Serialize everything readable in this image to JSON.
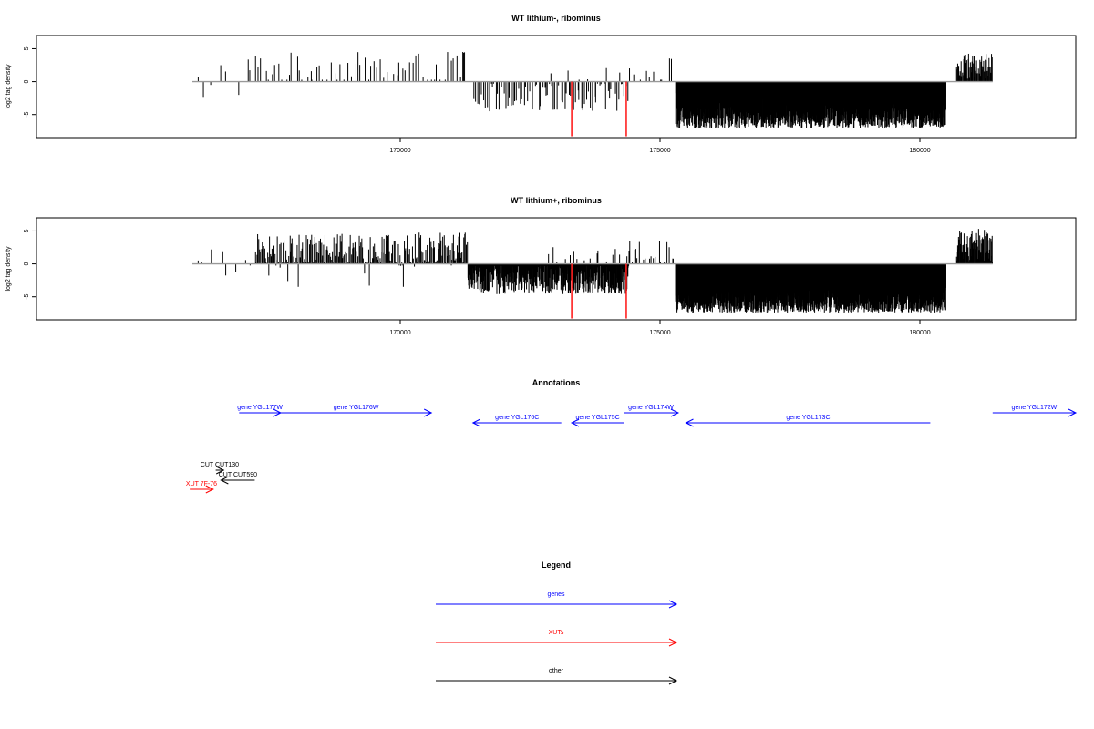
{
  "chart_data": [
    {
      "type": "bar",
      "title": "WT lithium-, ribominus",
      "xlabel": "",
      "ylabel": "log2 tag density",
      "xlim": [
        163000,
        183000
      ],
      "ylim": [
        -8.5,
        7
      ],
      "x_ticks": [
        170000,
        175000,
        180000
      ],
      "y_ticks": [
        -5,
        0,
        5
      ],
      "baseline": {
        "x": [
          166000,
          181400
        ],
        "y": 0,
        "color": "#999999"
      },
      "series_color": "#000000",
      "highlight_color": "#ff2020",
      "regions": [
        {
          "range": [
            166000,
            167100
          ],
          "density": 0.006,
          "mean": 1.8,
          "amp": 1.8,
          "neg_frac": 0.3
        },
        {
          "range": [
            167100,
            171200
          ],
          "density": 0.015,
          "mean": 1.9,
          "amp": 2.6,
          "neg_frac": 0.0
        },
        {
          "range": [
            171200,
            171250
          ],
          "density": 0.06,
          "mean": 4.3,
          "amp": 0.3,
          "neg_frac": 0.0
        },
        {
          "range": [
            171400,
            174400
          ],
          "density": 0.028,
          "mean": -2.3,
          "amp": 2.2,
          "neg_frac": 0.0
        },
        {
          "range": [
            172800,
            174400
          ],
          "density": 0.004,
          "mean": 1.2,
          "amp": 1.0,
          "neg_frac": 0.0
        },
        {
          "range": [
            174400,
            175300
          ],
          "density": 0.011,
          "mean": 1.8,
          "amp": 2.0,
          "neg_frac": 0.0
        },
        {
          "range": [
            175300,
            180500
          ],
          "density": 0.42,
          "mean": -4.2,
          "amp": 2.9,
          "neg_frac": 0.0
        },
        {
          "range": [
            180700,
            181400
          ],
          "density": 0.09,
          "mean": 2.4,
          "amp": 2.0,
          "neg_frac": 0.0
        }
      ],
      "highlights": [
        {
          "x": 173300,
          "y": -8.3
        },
        {
          "x": 174350,
          "y": -8.3
        }
      ]
    },
    {
      "type": "bar",
      "title": "WT lithium+, ribominus",
      "xlabel": "",
      "ylabel": "log2 tag density",
      "xlim": [
        163000,
        183000
      ],
      "ylim": [
        -8.5,
        7
      ],
      "x_ticks": [
        170000,
        175000,
        180000
      ],
      "y_ticks": [
        -5,
        0,
        5
      ],
      "baseline": {
        "x": [
          166000,
          181400
        ],
        "y": 0,
        "color": "#999999"
      },
      "series_color": "#000000",
      "highlight_color": "#ff2020",
      "regions": [
        {
          "range": [
            166000,
            167200
          ],
          "density": 0.007,
          "mean": 1.5,
          "amp": 1.6,
          "neg_frac": 0.35
        },
        {
          "range": [
            167200,
            171300
          ],
          "density": 0.06,
          "mean": 2.0,
          "amp": 2.8,
          "neg_frac": 0.06
        },
        {
          "range": [
            171300,
            174400
          ],
          "density": 0.17,
          "mean": -2.2,
          "amp": 2.4,
          "neg_frac": 0.0
        },
        {
          "range": [
            172800,
            174600
          ],
          "density": 0.01,
          "mean": 1.4,
          "amp": 1.2,
          "neg_frac": 0.0
        },
        {
          "range": [
            174400,
            175300
          ],
          "density": 0.02,
          "mean": 1.8,
          "amp": 1.8,
          "neg_frac": 0.0
        },
        {
          "range": [
            175300,
            180500
          ],
          "density": 0.55,
          "mean": -4.4,
          "amp": 3.0,
          "neg_frac": 0.0
        },
        {
          "range": [
            180700,
            181400
          ],
          "density": 0.12,
          "mean": 2.8,
          "amp": 2.6,
          "neg_frac": 0.0
        }
      ],
      "highlights": [
        {
          "x": 173300,
          "y": -8.3
        },
        {
          "x": 174350,
          "y": -8.3
        }
      ]
    }
  ],
  "annotations": {
    "title": "Annotations",
    "items": [
      {
        "label": "gene YGL177W",
        "start": 166900,
        "end": 167700,
        "row": 0,
        "strand": "+",
        "color": "#0000ff"
      },
      {
        "label": "gene YGL176W",
        "start": 167700,
        "end": 170600,
        "row": 0,
        "strand": "+",
        "color": "#0000ff"
      },
      {
        "label": "gene YGL176C",
        "start": 171400,
        "end": 173100,
        "row": 1,
        "strand": "-",
        "color": "#0000ff"
      },
      {
        "label": "gene YGL175C",
        "start": 173300,
        "end": 174300,
        "row": 1,
        "strand": "-",
        "color": "#0000ff"
      },
      {
        "label": "gene YGL174W",
        "start": 174300,
        "end": 175350,
        "row": 0,
        "strand": "+",
        "color": "#0000ff"
      },
      {
        "label": "gene YGL173C",
        "start": 175500,
        "end": 180200,
        "row": 1,
        "strand": "-",
        "color": "#0000ff"
      },
      {
        "label": "gene YGL172W",
        "start": 181400,
        "end": 183000,
        "row": 0,
        "strand": "+",
        "color": "#0000ff"
      },
      {
        "label": "CUT CUT130",
        "start": 166450,
        "end": 166600,
        "row": 6,
        "strand": "+",
        "color": "#000000"
      },
      {
        "label": "CUT CUT590",
        "start": 166550,
        "end": 167200,
        "row": 7,
        "strand": "-",
        "color": "#000000"
      },
      {
        "label": "XUT 7F-76",
        "start": 165950,
        "end": 166400,
        "row": 8,
        "strand": "+",
        "color": "#ff0000"
      }
    ]
  },
  "legend": {
    "title": "Legend",
    "items": [
      {
        "label": "genes",
        "color": "#0000ff"
      },
      {
        "label": "XUTs",
        "color": "#ff0000"
      },
      {
        "label": "other",
        "color": "#000000"
      }
    ]
  }
}
